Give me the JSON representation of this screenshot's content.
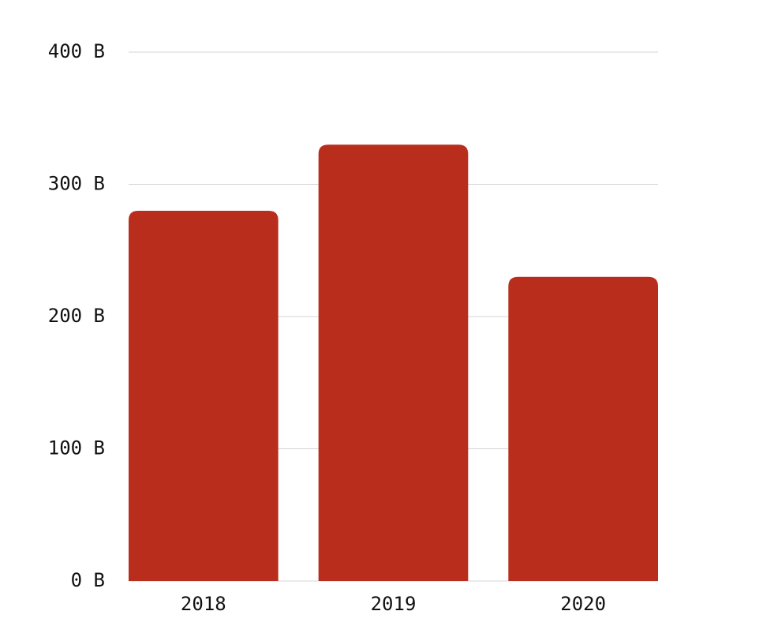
{
  "chart_data": {
    "type": "bar",
    "categories": [
      "2018",
      "2019",
      "2020"
    ],
    "values": [
      280,
      330,
      230
    ],
    "color": "#b92d1d",
    "ylim": [
      0,
      400
    ],
    "yticks": [
      {
        "value": 0,
        "label": "0 B"
      },
      {
        "value": 100,
        "label": "100 B"
      },
      {
        "value": 200,
        "label": "200 B"
      },
      {
        "value": 300,
        "label": "300 B"
      },
      {
        "value": 400,
        "label": "400 B"
      }
    ],
    "grid": true
  }
}
